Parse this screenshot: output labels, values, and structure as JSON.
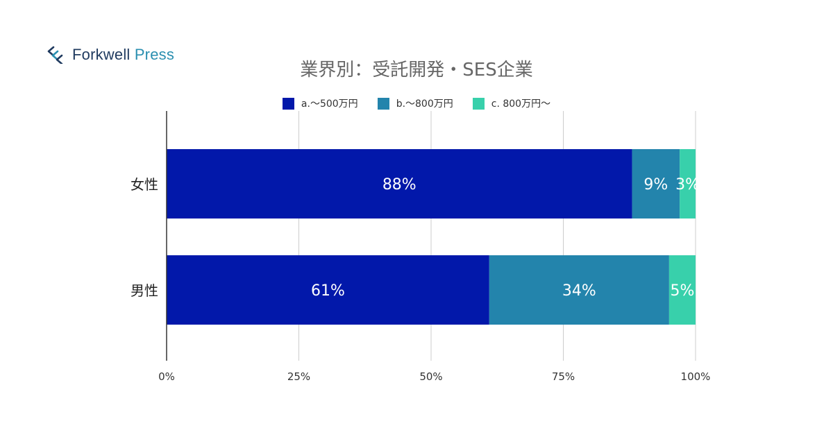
{
  "logo": {
    "text_main": "Forkwell ",
    "text_accent": "Press",
    "icon": "forkwell-chevrons-icon"
  },
  "chart_data": {
    "type": "bar",
    "orientation": "horizontal",
    "stacked": true,
    "title": "業界別：受託開発・SES企業",
    "categories": [
      "女性",
      "男性"
    ],
    "series": [
      {
        "name": "a.〜500万円",
        "color": "#0218aa",
        "values": [
          88,
          61
        ]
      },
      {
        "name": "b.〜800万円",
        "color": "#2384ac",
        "values": [
          9,
          34
        ]
      },
      {
        "name": "c. 800万円〜",
        "color": "#38d0ab",
        "values": [
          3,
          5
        ]
      }
    ],
    "data_labels": [
      [
        "88%",
        "61%"
      ],
      [
        "9%",
        "34%"
      ],
      [
        "3%",
        "5%"
      ]
    ],
    "xaxis": {
      "ticks": [
        "0%",
        "25%",
        "50%",
        "75%",
        "100%"
      ],
      "range": [
        0,
        100
      ]
    },
    "grid": true,
    "legend_position": "top"
  }
}
